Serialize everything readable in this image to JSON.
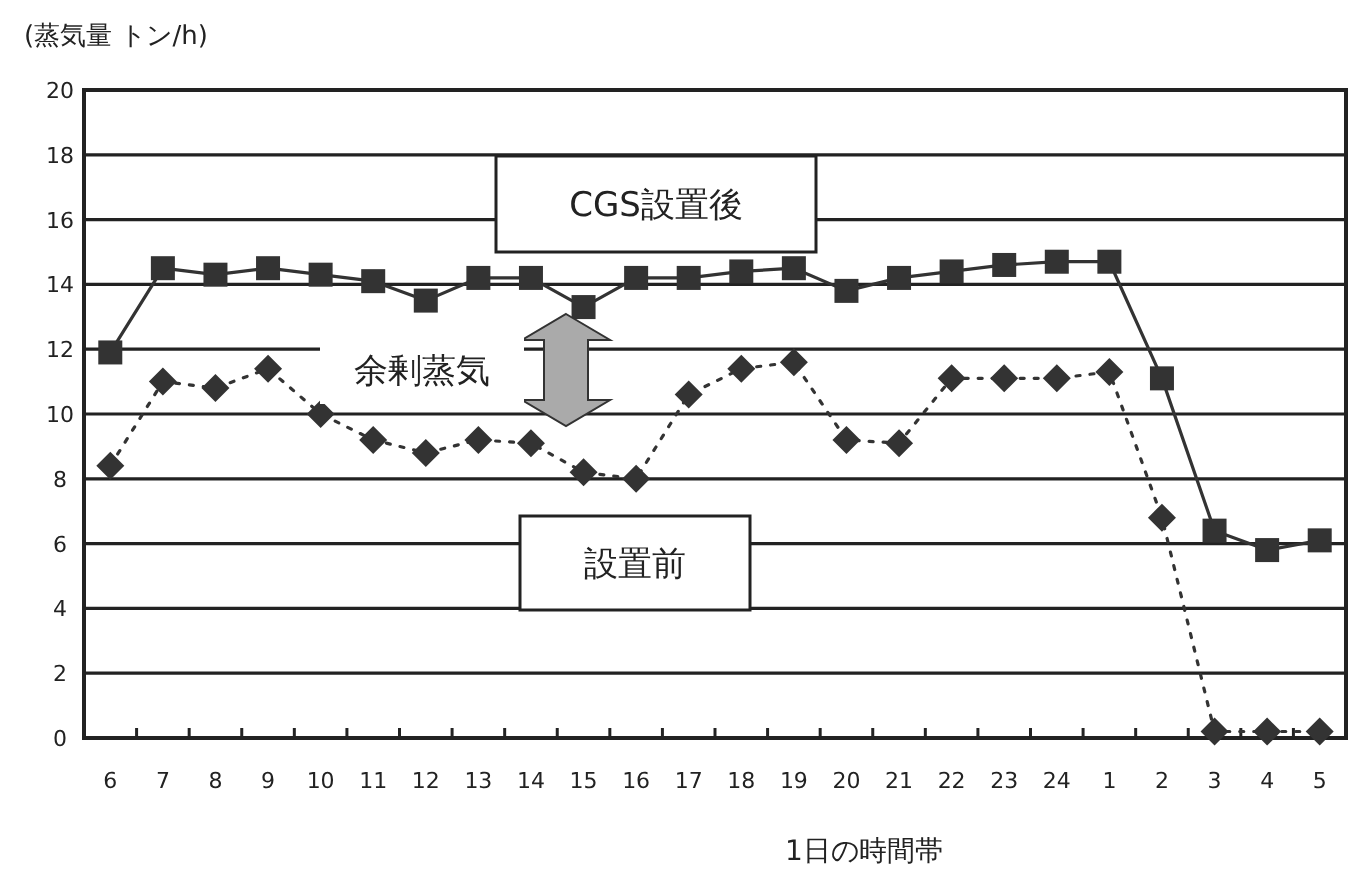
{
  "chart_data": {
    "type": "line",
    "ylabel": "(蒸気量 トン/h)",
    "xlabel": "1日の時間帯",
    "categories": [
      "6",
      "7",
      "8",
      "9",
      "10",
      "11",
      "12",
      "13",
      "14",
      "15",
      "16",
      "17",
      "18",
      "19",
      "20",
      "21",
      "22",
      "23",
      "24",
      "1",
      "2",
      "3",
      "4",
      "5"
    ],
    "series": [
      {
        "color": "#333333",
        "marker": "square",
        "line_style": "solid",
        "values": [
          11.9,
          14.5,
          14.3,
          14.5,
          14.3,
          14.1,
          13.5,
          14.2,
          14.2,
          13.3,
          14.2,
          14.2,
          14.4,
          14.5,
          13.8,
          14.2,
          14.4,
          14.6,
          14.7,
          14.7,
          11.1,
          6.4,
          5.8,
          6.1
        ]
      },
      {
        "color": "#333333",
        "marker": "diamond",
        "line_style": "dotted",
        "values": [
          8.4,
          11.0,
          10.8,
          11.4,
          10.0,
          9.2,
          8.8,
          9.2,
          9.1,
          8.2,
          8.0,
          10.6,
          11.4,
          11.6,
          9.2,
          9.1,
          11.1,
          11.1,
          11.1,
          11.3,
          6.8,
          0.2,
          0.2,
          0.2
        ]
      }
    ],
    "annotations": [
      "CGS設置後",
      "余剰蒸気",
      "設置前"
    ],
    "ylim": [
      0,
      20
    ],
    "yticks": [
      0,
      2,
      4,
      6,
      8,
      10,
      12,
      14,
      16,
      18,
      20
    ],
    "grid": "y"
  }
}
